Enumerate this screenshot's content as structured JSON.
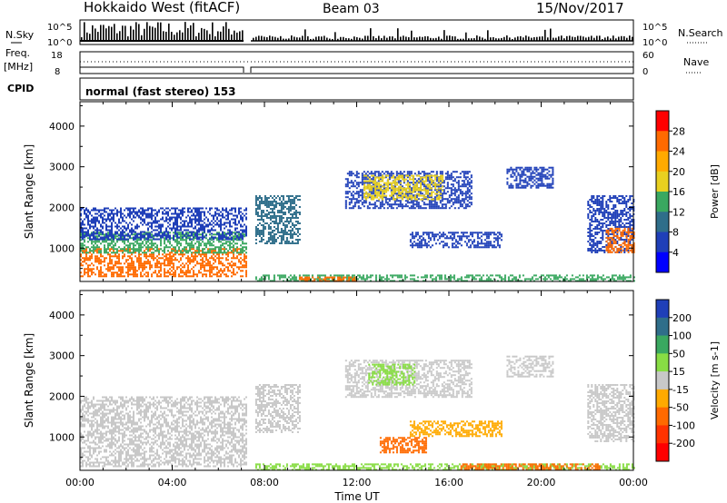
{
  "header": {
    "station": "Hokkaido West (fitACF)",
    "beam": "Beam 03",
    "date": "15/Nov/2017"
  },
  "strips": {
    "nsky_label": "N.Sky",
    "nsearch_label": "N.Search",
    "noise_ticks": [
      "10^5",
      "10^0"
    ],
    "freq_label_1": "Freq.",
    "freq_label_2": "[MHz]",
    "freq_ticks": [
      "18",
      "8"
    ],
    "nave_label": "Nave",
    "nave_ticks": [
      "60",
      "0"
    ],
    "cpid_label": "CPID",
    "cpid_text": "normal (fast stereo) 153"
  },
  "x_axis": {
    "label": "Time UT",
    "ticks": [
      "00:00",
      "04:00",
      "08:00",
      "12:00",
      "16:00",
      "20:00",
      "00:00"
    ],
    "range_hours": [
      0,
      24
    ]
  },
  "chart_data": [
    {
      "type": "heatmap",
      "name": "Power",
      "ylabel": "Slant Range [km]",
      "yticks": [
        1000,
        2000,
        3000,
        4000
      ],
      "ylim": [
        180,
        4600
      ],
      "xlim": [
        0,
        24
      ],
      "colorbar": {
        "label": "Power [dB]",
        "ticks": [
          "28",
          "24",
          "20",
          "16",
          "12",
          "8",
          "4"
        ],
        "colors": [
          "#ff0000",
          "#ff6a00",
          "#ffaa00",
          "#e8d020",
          "#3aa860",
          "#2f6e8a",
          "#1f3fb8",
          "#0000ff"
        ]
      },
      "bands": [
        {
          "t0": 0.0,
          "t1": 7.2,
          "r0": 300,
          "r1": 1000,
          "color": "#ff6a00"
        },
        {
          "t0": 0.0,
          "t1": 7.2,
          "r0": 900,
          "r1": 1400,
          "color": "#3aa860"
        },
        {
          "t0": 0.0,
          "t1": 7.2,
          "r0": 1200,
          "r1": 2000,
          "color": "#1f3fb8"
        },
        {
          "t0": 7.6,
          "t1": 9.5,
          "r0": 1100,
          "r1": 2300,
          "color": "#2f6e8a"
        },
        {
          "t0": 11.5,
          "t1": 17.0,
          "r0": 2000,
          "r1": 2900,
          "color": "#1f3fb8"
        },
        {
          "t0": 12.3,
          "t1": 15.7,
          "r0": 2200,
          "r1": 2800,
          "color": "#e8d020"
        },
        {
          "t0": 14.3,
          "t1": 18.3,
          "r0": 1000,
          "r1": 1400,
          "color": "#1f3fb8"
        },
        {
          "t0": 18.5,
          "t1": 20.5,
          "r0": 2500,
          "r1": 3000,
          "color": "#1f3fb8"
        },
        {
          "t0": 22.0,
          "t1": 24.0,
          "r0": 900,
          "r1": 2300,
          "color": "#1f3fb8"
        },
        {
          "t0": 22.8,
          "t1": 24.0,
          "r0": 900,
          "r1": 1500,
          "color": "#ff6a00"
        },
        {
          "t0": 7.6,
          "t1": 24.0,
          "r0": 180,
          "r1": 350,
          "color": "#3aa860"
        },
        {
          "t0": 9.5,
          "t1": 12.0,
          "r0": 180,
          "r1": 300,
          "color": "#ff6a00"
        }
      ]
    },
    {
      "type": "heatmap",
      "name": "Velocity",
      "ylabel": "Slant Range [km]",
      "yticks": [
        1000,
        2000,
        3000,
        4000
      ],
      "ylim": [
        180,
        4600
      ],
      "xlim": [
        0,
        24
      ],
      "colorbar": {
        "label": "Velocity [m s-1]",
        "ticks": [
          "200",
          "100",
          "50",
          "15",
          "-15",
          "-50",
          "-100",
          "-200"
        ],
        "colors": [
          "#1f3fb8",
          "#2f6e8a",
          "#3aa860",
          "#88dd44",
          "#c8c8c8",
          "#ffaa00",
          "#ff6a00",
          "#ff3300",
          "#ff0000"
        ]
      },
      "bands": [
        {
          "t0": 0.0,
          "t1": 7.2,
          "r0": 300,
          "r1": 2000,
          "color": "#c8c8c8"
        },
        {
          "t0": 7.6,
          "t1": 9.5,
          "r0": 1100,
          "r1": 2300,
          "color": "#c8c8c8"
        },
        {
          "t0": 11.5,
          "t1": 17.0,
          "r0": 2000,
          "r1": 2900,
          "color": "#c8c8c8"
        },
        {
          "t0": 12.5,
          "t1": 14.5,
          "r0": 2300,
          "r1": 2800,
          "color": "#88dd44"
        },
        {
          "t0": 14.3,
          "t1": 18.3,
          "r0": 1000,
          "r1": 1400,
          "color": "#ffaa00"
        },
        {
          "t0": 13.0,
          "t1": 15.0,
          "r0": 600,
          "r1": 1000,
          "color": "#ff6a00"
        },
        {
          "t0": 18.5,
          "t1": 20.5,
          "r0": 2500,
          "r1": 3000,
          "color": "#c8c8c8"
        },
        {
          "t0": 22.0,
          "t1": 24.0,
          "r0": 900,
          "r1": 2300,
          "color": "#c8c8c8"
        },
        {
          "t0": 7.6,
          "t1": 24.0,
          "r0": 180,
          "r1": 350,
          "color": "#88dd44"
        },
        {
          "t0": 16.5,
          "t1": 22.5,
          "r0": 180,
          "r1": 350,
          "color": "#ff6a00"
        }
      ]
    }
  ]
}
